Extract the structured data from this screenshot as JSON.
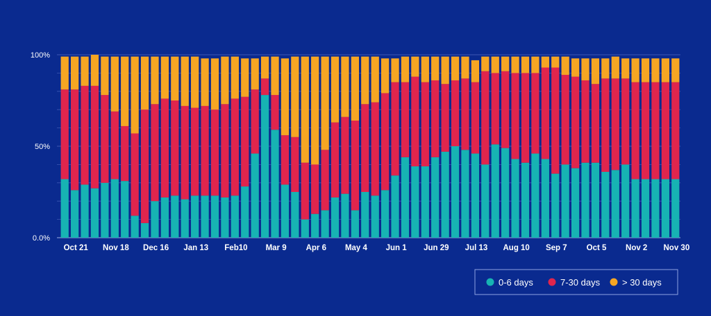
{
  "colors": {
    "background": "#0a2a8f",
    "gridline": "#3d58b3",
    "axis": "#9fb0e6",
    "legend_border": "#8fa2e0"
  },
  "chart_data": {
    "type": "bar",
    "stacked": true,
    "normalized_percent": true,
    "ylim": [
      0,
      100
    ],
    "y_ticks": [
      "0.0%",
      "50%",
      "100%"
    ],
    "y_tick_values": [
      0,
      50,
      100
    ],
    "x_tick_labels": [
      {
        "index": 0,
        "label": "Oct 21"
      },
      {
        "index": 4,
        "label": "Nov 18"
      },
      {
        "index": 8,
        "label": "Dec 16"
      },
      {
        "index": 12,
        "label": "Jan 13"
      },
      {
        "index": 16,
        "label": "Feb10"
      },
      {
        "index": 20,
        "label": "Mar 9"
      },
      {
        "index": 24,
        "label": "Apr 6"
      },
      {
        "index": 28,
        "label": "May 4"
      },
      {
        "index": 32,
        "label": "Jun 1"
      },
      {
        "index": 36,
        "label": "Jun 29"
      },
      {
        "index": 40,
        "label": "Jul 13"
      },
      {
        "index": 44,
        "label": "Aug 10"
      },
      {
        "index": 48,
        "label": "Sep 7"
      },
      {
        "index": 52,
        "label": "Oct 5"
      },
      {
        "index": 56,
        "label": "Nov 2"
      },
      {
        "index": 60,
        "label": "Nov 30"
      }
    ],
    "legend_position": "bottom-right",
    "grid": true,
    "series": [
      {
        "name": "0-6 days",
        "color": "#17b3b3",
        "values": [
          32,
          26,
          29,
          27,
          30,
          32,
          31,
          12,
          8,
          20,
          22,
          23,
          21,
          23,
          23,
          23,
          22,
          23,
          28,
          46,
          78,
          59,
          29,
          25,
          10,
          13,
          15,
          22,
          24,
          15,
          25,
          23,
          26,
          34,
          44,
          39,
          39,
          44,
          47,
          50,
          48,
          46,
          40,
          51,
          49,
          43,
          41,
          46,
          43,
          35,
          40,
          38,
          41,
          41,
          36,
          37,
          40,
          32,
          32,
          32,
          32,
          32
        ]
      },
      {
        "name": "7-30 days",
        "color": "#e0254d",
        "values": [
          49,
          55,
          54,
          56,
          48,
          37,
          30,
          45,
          62,
          53,
          54,
          52,
          51,
          48,
          49,
          47,
          51,
          53,
          49,
          35,
          9,
          19,
          27,
          30,
          31,
          27,
          33,
          41,
          42,
          49,
          48,
          51,
          53,
          51,
          41,
          49,
          46,
          42,
          37,
          36,
          39,
          39,
          51,
          39,
          42,
          47,
          49,
          44,
          50,
          58,
          49,
          50,
          45,
          43,
          51,
          50,
          47,
          53,
          53,
          53,
          53,
          53
        ]
      },
      {
        "name": "> 30 days",
        "color": "#f6a623",
        "values": [
          18,
          18,
          16,
          17,
          21,
          30,
          38,
          42,
          29,
          26,
          23,
          24,
          27,
          28,
          26,
          28,
          26,
          23,
          21,
          17,
          12,
          21,
          42,
          44,
          58,
          59,
          51,
          36,
          33,
          35,
          26,
          25,
          19,
          13,
          14,
          11,
          14,
          13,
          15,
          13,
          12,
          12,
          8,
          9,
          8,
          9,
          9,
          9,
          6,
          6,
          10,
          10,
          12,
          14,
          11,
          12,
          11,
          13,
          13,
          13,
          13,
          13
        ]
      }
    ]
  }
}
